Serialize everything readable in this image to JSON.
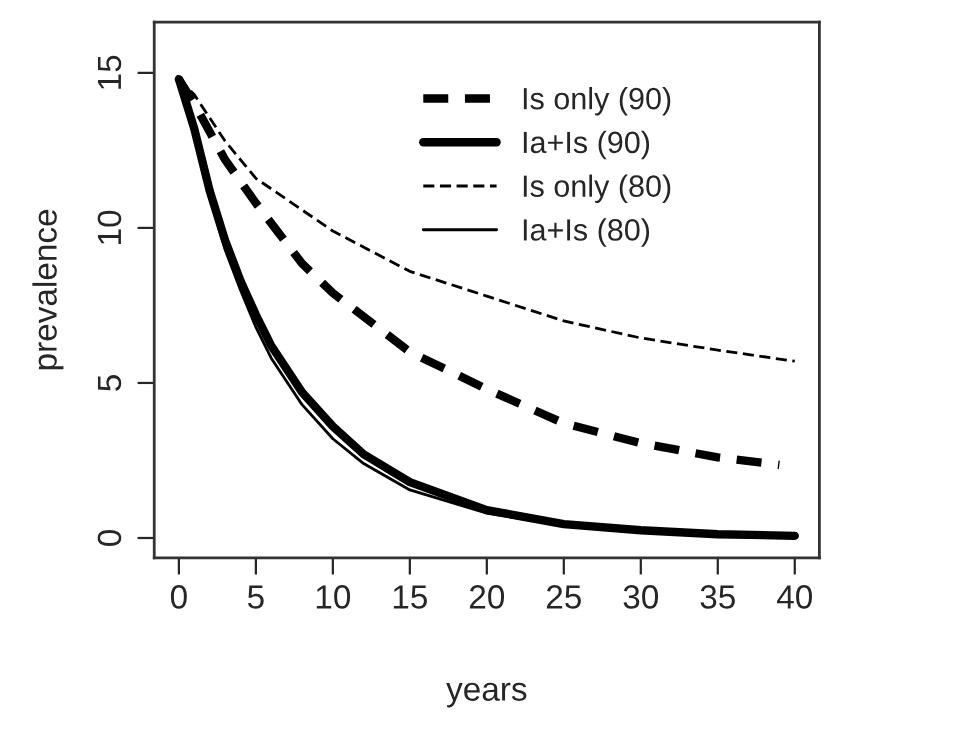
{
  "chart_data": {
    "type": "line",
    "xlabel": "years",
    "ylabel": "prevalence",
    "x": [
      0,
      1,
      2,
      3,
      4,
      5,
      6,
      8,
      10,
      12,
      15,
      20,
      25,
      30,
      35,
      40
    ],
    "series": [
      {
        "name": "Is only (90)",
        "color": "#000000",
        "line_style": "dashed",
        "x": [
          0,
          1,
          2,
          3,
          5,
          8,
          10,
          15,
          20,
          25,
          30,
          35,
          39
        ],
        "values": [
          14.8,
          14.0,
          13.1,
          12.2,
          10.8,
          8.85,
          7.9,
          6.0,
          4.8,
          3.7,
          3.06,
          2.6,
          2.36
        ]
      },
      {
        "name": "Ia+Is (90)",
        "color": "#000000",
        "line_style": "solid",
        "values": [
          14.8,
          13.2,
          11.2,
          9.6,
          8.3,
          7.2,
          6.2,
          4.7,
          3.6,
          2.7,
          1.8,
          0.9,
          0.45,
          0.25,
          0.12,
          0.07
        ]
      },
      {
        "name": "Is only (80)",
        "color": "#000000",
        "line_style": "dashed",
        "x": [
          0,
          1,
          3,
          5,
          10,
          15,
          20,
          25,
          30,
          35,
          40
        ],
        "values": [
          14.8,
          14.3,
          12.8,
          11.6,
          9.9,
          8.6,
          7.8,
          7.0,
          6.45,
          6.06,
          5.7
        ]
      },
      {
        "name": "Ia+Is (80)",
        "color": "#000000",
        "line_style": "solid",
        "values": [
          14.8,
          13.0,
          11.0,
          9.3,
          8.0,
          6.8,
          5.8,
          4.3,
          3.2,
          2.4,
          1.55,
          0.8,
          0.4,
          0.2,
          0.1,
          0.06
        ]
      }
    ],
    "xlim": [
      -1.6,
      41.6
    ],
    "ylim": [
      -0.64,
      16.64
    ],
    "xticks": [
      0,
      5,
      10,
      15,
      20,
      25,
      30,
      35,
      40
    ],
    "yticks": [
      0,
      5,
      10,
      15
    ],
    "grid": false,
    "legend": "top right",
    "marker": "none"
  }
}
